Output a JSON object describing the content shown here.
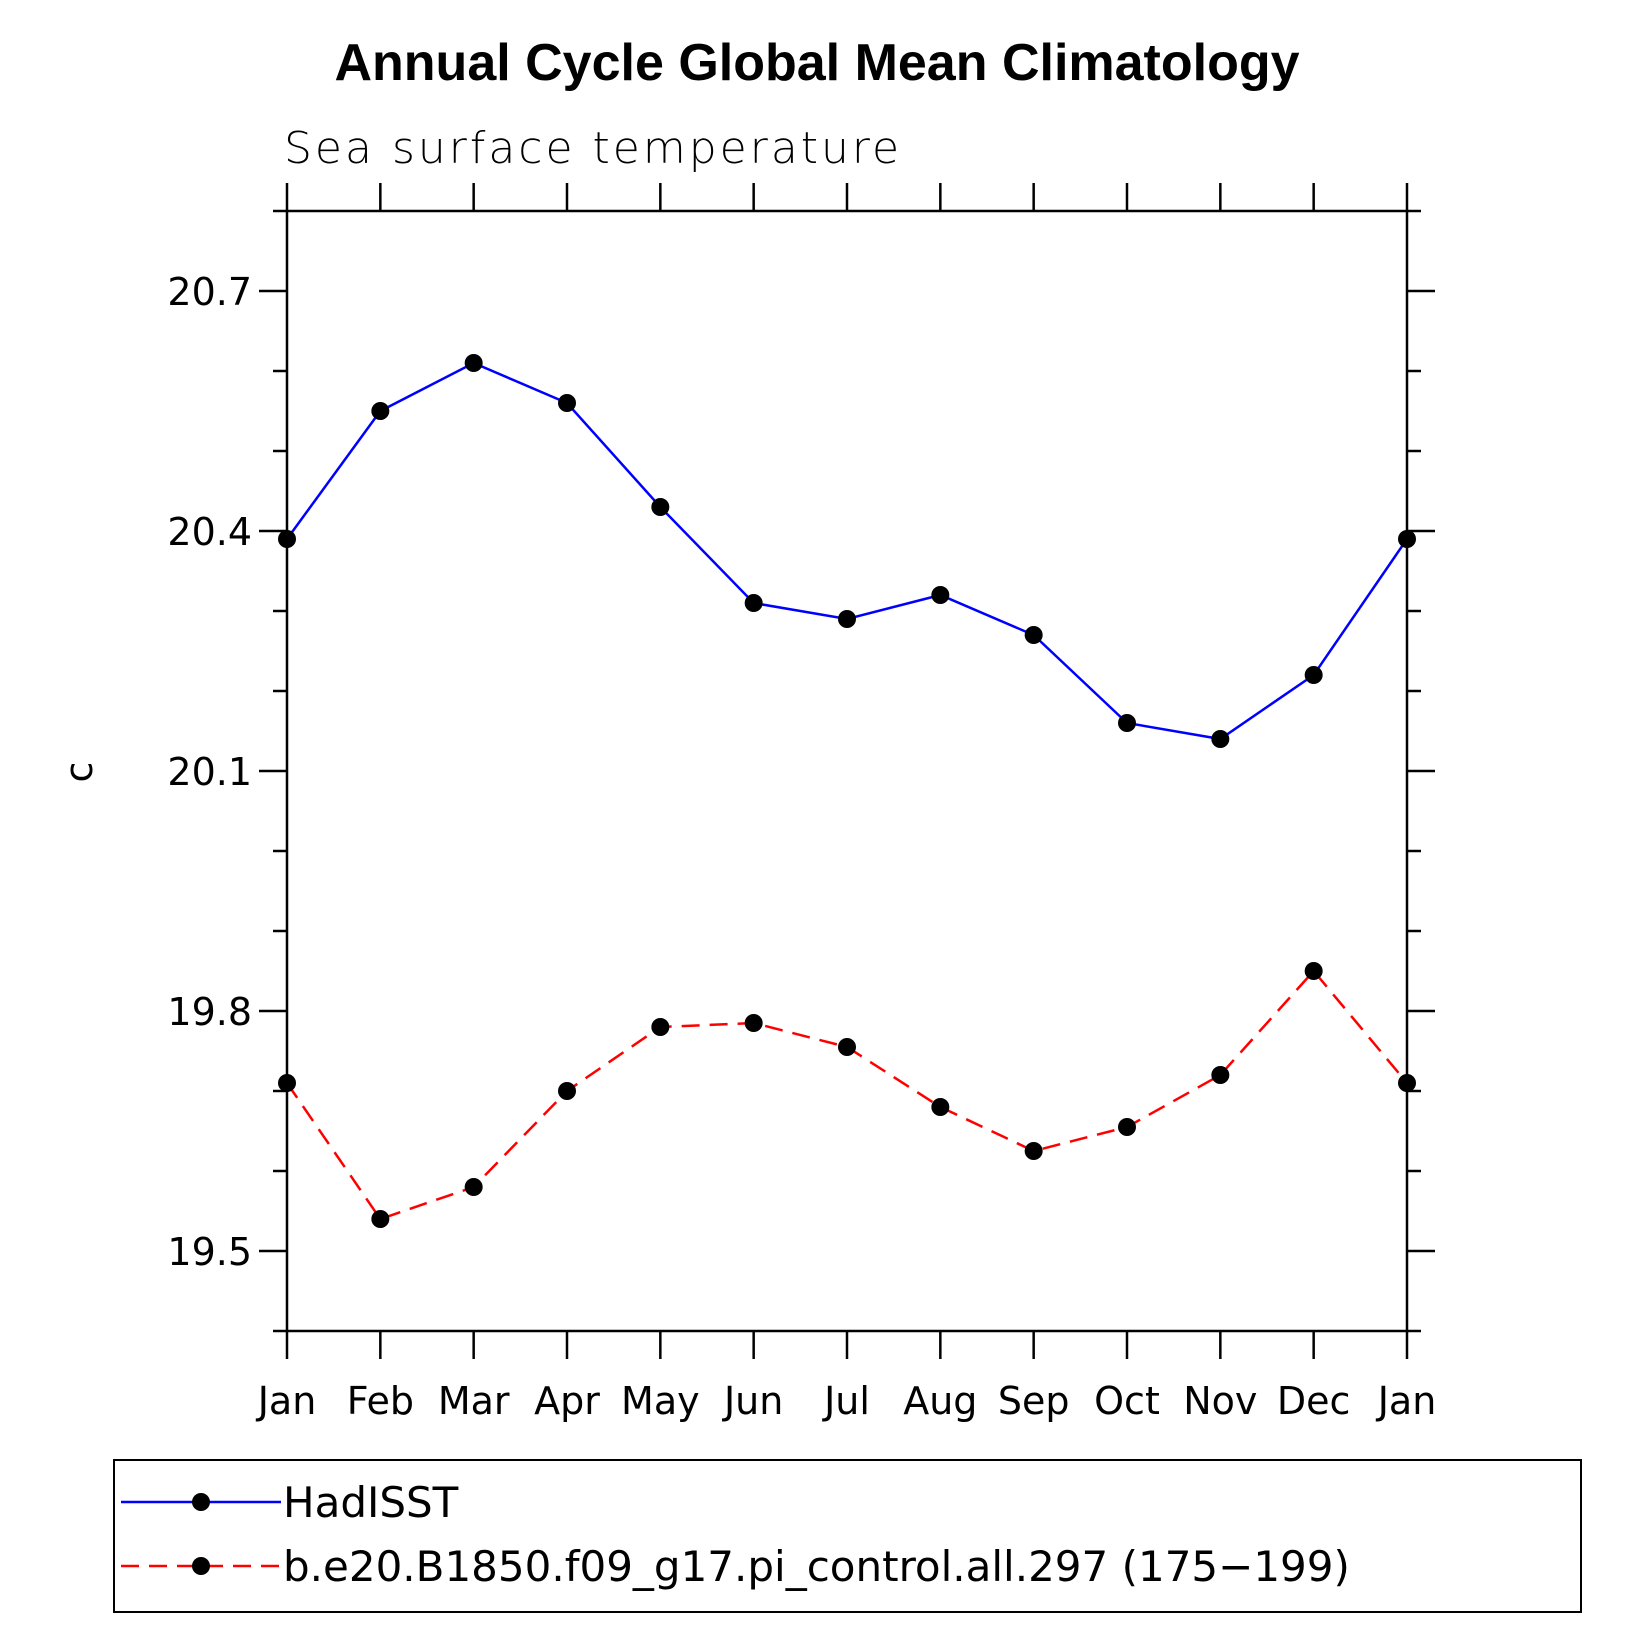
{
  "chart_data": {
    "type": "line",
    "title": "Annual Cycle Global Mean Climatology",
    "subtitle": "Sea surface temperature",
    "xlabel": "",
    "ylabel": "c",
    "categories": [
      "Jan",
      "Feb",
      "Mar",
      "Apr",
      "May",
      "Jun",
      "Jul",
      "Aug",
      "Sep",
      "Oct",
      "Nov",
      "Dec",
      "Jan"
    ],
    "ylim": [
      19.4,
      20.8
    ],
    "yticks_major": [
      "20.7",
      "20.4",
      "20.1",
      "19.8",
      "19.5"
    ],
    "yticks_minor_step": 0.1,
    "grid": false,
    "legend_position": "bottom",
    "series": [
      {
        "name": "HadISST",
        "color": "#0000ff",
        "line_style": "solid",
        "marker": "circle",
        "values": [
          20.39,
          20.55,
          20.61,
          20.56,
          20.43,
          20.31,
          20.29,
          20.32,
          20.27,
          20.16,
          20.14,
          20.22,
          20.39
        ]
      },
      {
        "name": "b.e20.B1850.f09_g17.pi_control.all.297 (175−199)",
        "color": "#ff0000",
        "line_style": "dashed",
        "marker": "circle",
        "values": [
          19.71,
          19.54,
          19.58,
          19.7,
          19.78,
          19.785,
          19.755,
          19.68,
          19.625,
          19.655,
          19.72,
          19.85,
          19.71
        ]
      }
    ]
  }
}
